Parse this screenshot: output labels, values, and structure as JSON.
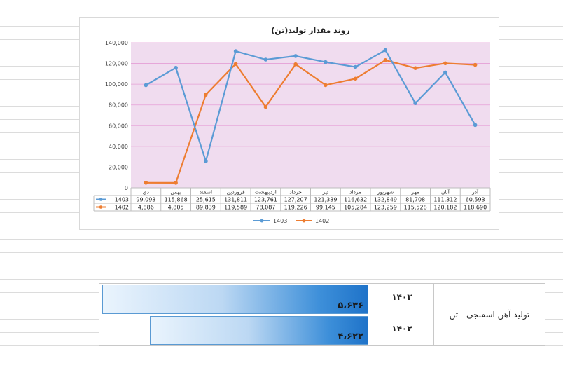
{
  "chart_data": {
    "type": "line",
    "title": "روند مقدار تولید(تن)",
    "categories": [
      "دی",
      "بهمن",
      "اسفند",
      "فروردین",
      "اردیبهشت",
      "خرداد",
      "تیر",
      "مرداد",
      "شهریور",
      "مهر",
      "آبان",
      "آذر"
    ],
    "series": [
      {
        "name": "1403",
        "color": "#5b9bd5",
        "values": [
          99093,
          115868,
          25615,
          131811,
          123761,
          127207,
          121339,
          116632,
          132849,
          81708,
          111312,
          60593
        ],
        "labels": [
          "99,093",
          "115,868",
          "25,615",
          "131,811",
          "123,761",
          "127,207",
          "121,339",
          "116,632",
          "132,849",
          "81,708",
          "111,312",
          "60,593"
        ]
      },
      {
        "name": "1402",
        "color": "#ed7d31",
        "values": [
          4886,
          4805,
          89839,
          119589,
          78087,
          119226,
          99145,
          105284,
          123259,
          115528,
          120182,
          118690
        ],
        "labels": [
          "4,886",
          "4,805",
          "89,839",
          "119,589",
          "78,087",
          "119,226",
          "99,145",
          "105,284",
          "123,259",
          "115,528",
          "120,182",
          "118,690"
        ]
      }
    ],
    "y_ticks": [
      "0",
      "20,000",
      "40,000",
      "60,000",
      "80,000",
      "100,000",
      "120,000",
      "140,000"
    ],
    "ylim": [
      0,
      140000
    ],
    "xlabel": "",
    "ylabel": "",
    "grid": true,
    "legend_position": "bottom",
    "plot_background": "#f0dcef",
    "grid_color": "#e59fd6"
  },
  "summary": {
    "label": "تولید آهن اسفنجی - تن",
    "rows": [
      {
        "year": "۱۴۰۳",
        "value_text": "۵،۶۳۶",
        "fraction": 1.0
      },
      {
        "year": "۱۴۰۲",
        "value_text": "۴،۶۲۲",
        "fraction": 0.82
      }
    ]
  }
}
